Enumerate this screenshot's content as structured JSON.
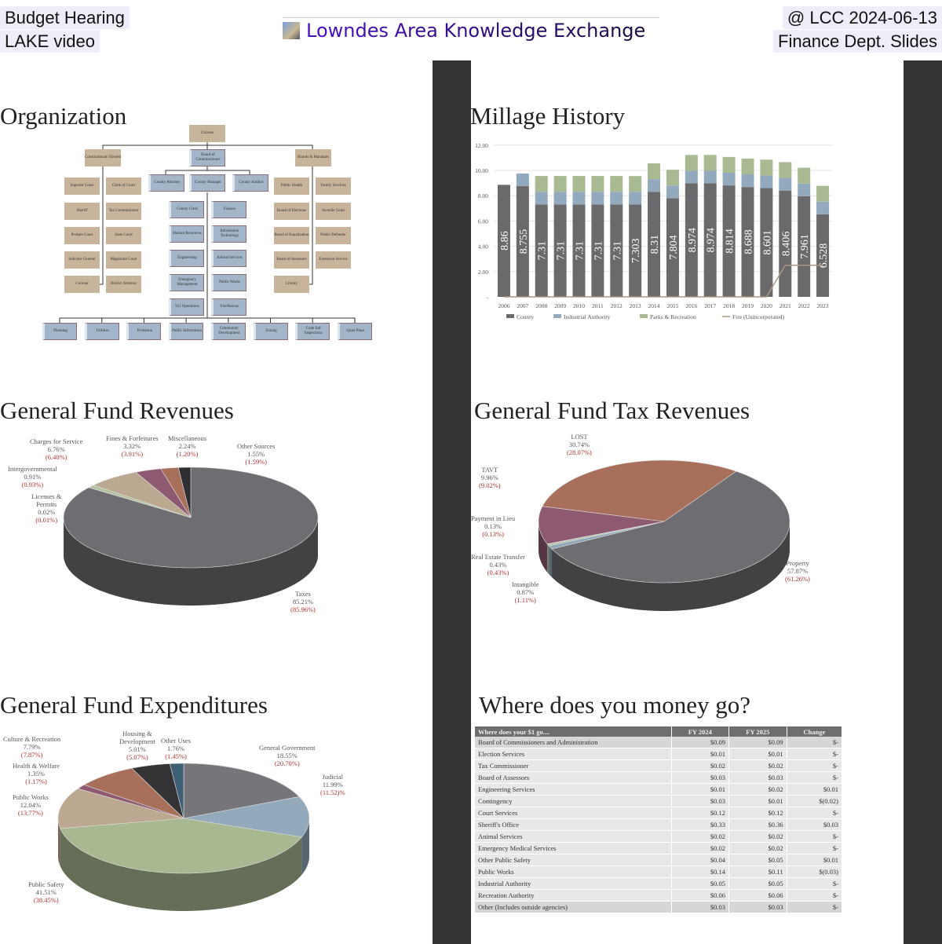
{
  "header": {
    "left_line1": "Budget Hearing",
    "left_line2": "LAKE video",
    "logo_text": "Lowndes Area Knowledge Exchange",
    "right_line1": "@ LCC 2024-06-13",
    "right_line2": "Finance Dept. Slides"
  },
  "organization": {
    "title": "Organization",
    "citizens": "Citizens",
    "level2": [
      "Constitutional/ Elected",
      "Board of Commissioners",
      "Boards & Mandates"
    ],
    "managers": [
      "County Attorney",
      "County Manager",
      "County Auditor"
    ],
    "elected": [
      [
        "Superior Court",
        "Clerk of Court"
      ],
      [
        "Sheriff",
        "Tax Commissioner"
      ],
      [
        "Probate Court",
        "State Court"
      ],
      [
        "Solicitor General",
        "Magistrate Court"
      ],
      [
        "Coroner",
        "District Attorney"
      ]
    ],
    "county_depts": [
      [
        "County Clerk",
        "Finance"
      ],
      [
        "Human Resources",
        "Information Technology"
      ],
      [
        "Engineering",
        "Animal Services"
      ],
      [
        "Emergency Management",
        "Public Works"
      ],
      [
        "911 Operations",
        "Fire/Rescue"
      ]
    ],
    "boards": [
      [
        "Public Health",
        "Family Services"
      ],
      [
        "Board of Elections",
        "Juvenile Court"
      ],
      [
        "Board of Equalization",
        "Public Defender"
      ],
      [
        "Board of Assessors",
        "Extension Service"
      ],
      [
        "Library",
        null
      ]
    ],
    "bottom": [
      "Planning",
      "Utilities",
      "Probation",
      "Public Information",
      "Community Development",
      "Zoning",
      "Code Enf Inspections",
      "Quiet Pines"
    ]
  },
  "chart_data": [
    {
      "type": "bar",
      "title": "Millage History",
      "stacked": true,
      "categories": [
        "2006",
        "2007",
        "2008",
        "2009",
        "2010",
        "2011",
        "2012",
        "2013",
        "2014",
        "2015",
        "2016",
        "2017",
        "2018",
        "2019",
        "2020",
        "2021",
        "2022",
        "2023"
      ],
      "yticks": [
        "-",
        "2.00",
        "4.00",
        "6.00",
        "8.00",
        "10.00",
        "12.00"
      ],
      "ylim": [
        0,
        12
      ],
      "grid": true,
      "legend": "bottom",
      "series": [
        {
          "name": "County",
          "color": "#6a6a6c",
          "values": [
            8.86,
            8.755,
            7.31,
            7.31,
            7.31,
            7.31,
            7.31,
            7.303,
            8.31,
            7.804,
            8.974,
            8.974,
            8.814,
            8.688,
            8.601,
            8.406,
            7.961,
            6.528
          ],
          "labels": [
            "8.86",
            "8.755",
            "7.31",
            "7.31",
            "7.31",
            "7.31",
            "7.31",
            "7.303",
            "8.31",
            "7.804",
            "8.974",
            "8.974",
            "8.814",
            "8.688",
            "8.601",
            "8.406",
            "7.961",
            "6.528"
          ]
        },
        {
          "name": "Industrial Authority",
          "color": "#93a9bd",
          "values": [
            0,
            1.0,
            1.0,
            1.0,
            1.0,
            1.0,
            1.0,
            1.0,
            1.0,
            1.0,
            1.0,
            1.0,
            1.0,
            1.0,
            1.0,
            1.0,
            1.0,
            1.0
          ]
        },
        {
          "name": "Parks & Recreation",
          "color": "#a9ba92",
          "values": [
            0,
            0,
            1.25,
            1.25,
            1.25,
            1.25,
            1.25,
            1.25,
            1.25,
            1.25,
            1.25,
            1.25,
            1.25,
            1.25,
            1.25,
            1.25,
            1.25,
            1.25
          ]
        },
        {
          "name": "Fire (Unincorporated)",
          "color": "#a89a80",
          "type": "line",
          "values": [
            0,
            0,
            0,
            0,
            0,
            0,
            0,
            0,
            0,
            0,
            0,
            0,
            0,
            0,
            0,
            2.5,
            2.5,
            2.5
          ]
        }
      ]
    },
    {
      "type": "pie",
      "title": "General Fund Revenues",
      "slices": [
        {
          "name": "Taxes",
          "pct": "85.21%",
          "prior": "(85.96%)",
          "value": 85.21,
          "color": "#6e6e72"
        },
        {
          "name": "Licenses &\nPermits",
          "pct": "0.02%",
          "prior": "(0.01%)",
          "value": 0.02,
          "color": "#8fa6b8"
        },
        {
          "name": "Intergovernmental",
          "pct": "0.91%",
          "prior": "(0.93%)",
          "value": 0.91,
          "color": "#b5c4a0"
        },
        {
          "name": "Charges for Service",
          "pct": "6.76%",
          "prior": "(6.40%)",
          "value": 6.76,
          "color": "#bba890"
        },
        {
          "name": "Fines & Forfeitures",
          "pct": "3.32%",
          "prior": "(3.91%)",
          "value": 3.32,
          "color": "#8e5a72"
        },
        {
          "name": "Miscellaneous",
          "pct": "2.24%",
          "prior": "(1.20%)",
          "value": 2.24,
          "color": "#a8705a"
        },
        {
          "name": "Other Sources",
          "pct": "1.55%",
          "prior": "(1.59%)",
          "value": 1.55,
          "color": "#2f2f33"
        }
      ]
    },
    {
      "type": "pie",
      "title": "General Fund Tax Revenues",
      "slices": [
        {
          "name": "Property",
          "pct": "57.87%",
          "prior": "(61.26%)",
          "value": 57.87,
          "color": "#6e6e72"
        },
        {
          "name": "Intangible",
          "pct": "0.87%",
          "prior": "(1.11%)",
          "value": 0.87,
          "color": "#8fa6b8"
        },
        {
          "name": "Real Estate Transfer",
          "pct": "0.43%",
          "prior": "(0.43%)",
          "value": 0.43,
          "color": "#a9bfa0"
        },
        {
          "name": "Payment in Lieu",
          "pct": "0.13%",
          "prior": "(0.13%)",
          "value": 0.13,
          "color": "#c0b8a8"
        },
        {
          "name": "TAVT",
          "pct": "9.96%",
          "prior": "(9.02%)",
          "value": 9.96,
          "color": "#8e5a72"
        },
        {
          "name": "LOST",
          "pct": "30.74%",
          "prior": "(28.07%)",
          "value": 30.74,
          "color": "#a8705a"
        }
      ]
    },
    {
      "type": "pie",
      "title": "General Fund Expenditures",
      "slices": [
        {
          "name": "General Government",
          "pct": "18.55%",
          "prior": "(20.70%)",
          "value": 18.55,
          "color": "#76767a"
        },
        {
          "name": "Judicial",
          "pct": "11.99%",
          "prior": "(11.52)%",
          "value": 11.99,
          "color": "#93aabd"
        },
        {
          "name": "Public Safety",
          "pct": "41.51%",
          "prior": "(38.45%)",
          "value": 41.51,
          "color": "#a8b890"
        },
        {
          "name": "Public Works",
          "pct": "12.04%",
          "prior": "(13.77%)",
          "value": 12.04,
          "color": "#bca890"
        },
        {
          "name": "Health & Welfare",
          "pct": "1.35%",
          "prior": "(1.17%)",
          "value": 1.35,
          "color": "#8e5a72"
        },
        {
          "name": "Culture & Recreation",
          "pct": "7.79%",
          "prior": "(7.87%)",
          "value": 7.79,
          "color": "#a8705a"
        },
        {
          "name": "Housing &\nDevelopment",
          "pct": "5.01%",
          "prior": "(5.07%)",
          "value": 5.01,
          "color": "#333336"
        },
        {
          "name": "Other Uses",
          "pct": "1.76%",
          "prior": "(1.45%)",
          "value": 1.76,
          "color": "#3f5f75"
        }
      ]
    }
  ],
  "money": {
    "title": "Where does you money go?",
    "headers": [
      "Where does your $1 go....",
      "FY 2024",
      "FY 2025",
      "Change"
    ],
    "rows": [
      [
        "Board of Commissioners and Administration",
        "$0.09",
        "$0.09",
        "$-"
      ],
      [
        "Election Services",
        "$0.01",
        "$0.01",
        "$-"
      ],
      [
        "Tax Commissioner",
        "$0.02",
        "$0.02",
        "$-"
      ],
      [
        "Board of Assessors",
        "$0.03",
        "$0.03",
        "$-"
      ],
      [
        "Engineering Services",
        "$0.01",
        "$0.02",
        "$0.01"
      ],
      [
        "Contingency",
        "$0.03",
        "$0.01",
        "$(0.02)"
      ],
      [
        "Court Services",
        "$0.12",
        "$0.12",
        "$-"
      ],
      [
        "Sheriff's Office",
        "$0.33",
        "$0.36",
        "$0.03"
      ],
      [
        "Animal Services",
        "$0.02",
        "$0.02",
        "$-"
      ],
      [
        "Emergency Medical Services",
        "$0.02",
        "$0.02",
        "$-"
      ],
      [
        "Other Public Safety",
        "$0.04",
        "$0.05",
        "$0.01"
      ],
      [
        "Public Works",
        "$0.14",
        "$0.11",
        "$(0.03)"
      ],
      [
        "Industrial Authority",
        "$0.05",
        "$0.05",
        "$-"
      ],
      [
        "Recreation Authority",
        "$0.06",
        "$0.06",
        "$-"
      ],
      [
        "Other (Includes outside agencies)",
        "$0.03",
        "$0.03",
        "$-"
      ]
    ]
  }
}
